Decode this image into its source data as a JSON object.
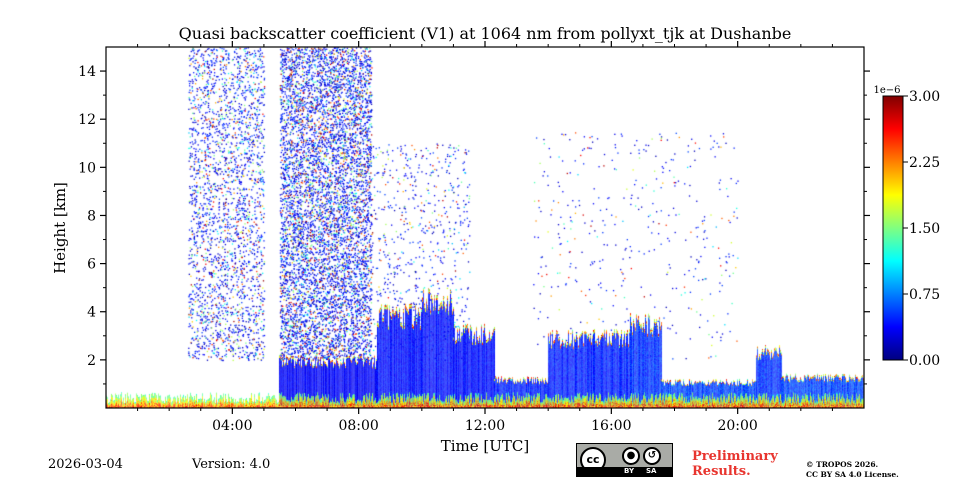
{
  "chart_data": {
    "type": "heatmap",
    "title": "Quasi backscatter coefficient (V1) at 1064 nm from pollyxt_tjk at Dushanbe",
    "xlabel": "Time [UTC]",
    "ylabel": "Height [km]",
    "x_unit": "hours UTC",
    "xlim": [
      0,
      24
    ],
    "ylim": [
      0,
      15
    ],
    "x_ticks": [
      4,
      8,
      12,
      16,
      20
    ],
    "x_tick_labels": [
      "04:00",
      "08:00",
      "12:00",
      "16:00",
      "20:00"
    ],
    "y_ticks": [
      2,
      4,
      6,
      8,
      10,
      12,
      14
    ],
    "y_tick_labels": [
      "2",
      "4",
      "6",
      "8",
      "10",
      "12",
      "14"
    ],
    "colorbar": {
      "range": [
        0,
        3.0
      ],
      "ticks": [
        0.0,
        0.75,
        1.5,
        2.25,
        3.0
      ],
      "tick_labels": [
        "0.00",
        "0.75",
        "1.50",
        "2.25",
        "3.00"
      ],
      "scale_label": "1e−6",
      "colormap": "jet"
    },
    "features": [
      {
        "desc": "dense noisy dots",
        "t_start": 5.5,
        "t_end": 8.4,
        "h_top": 15.0,
        "density": 0.55
      },
      {
        "desc": "sparse dots",
        "t_start": 2.6,
        "t_end": 5.0,
        "h_top": 15.0,
        "density": 0.25
      },
      {
        "desc": "sparse dots",
        "t_start": 8.4,
        "t_end": 11.5,
        "h_top": 11.0,
        "density": 0.07
      },
      {
        "desc": "sparse dots",
        "t_start": 13.5,
        "t_end": 20.0,
        "h_top": 11.5,
        "density": 0.02
      },
      {
        "desc": "aerosol layer",
        "t_start": 5.5,
        "t_end": 8.6,
        "h_bottom": 0.1,
        "h_top": 2.0,
        "value": 0.35
      },
      {
        "desc": "aerosol layer",
        "t_start": 8.6,
        "t_end": 10.0,
        "h_bottom": 0.1,
        "h_top": 4.0,
        "value": 0.4
      },
      {
        "desc": "aerosol layer",
        "t_start": 10.0,
        "t_end": 11.0,
        "h_bottom": 0.1,
        "h_top": 4.6,
        "value": 0.4
      },
      {
        "desc": "aerosol layer",
        "t_start": 11.0,
        "t_end": 12.3,
        "h_bottom": 0.1,
        "h_top": 3.2,
        "value": 0.4
      },
      {
        "desc": "aerosol layer",
        "t_start": 12.3,
        "t_end": 14.0,
        "h_bottom": 0.1,
        "h_top": 1.2,
        "value": 0.45
      },
      {
        "desc": "aerosol layer",
        "t_start": 14.0,
        "t_end": 16.6,
        "h_bottom": 0.1,
        "h_top": 3.0,
        "value": 0.45
      },
      {
        "desc": "aerosol layer",
        "t_start": 16.6,
        "t_end": 17.6,
        "h_bottom": 0.1,
        "h_top": 3.6,
        "value": 0.5
      },
      {
        "desc": "aerosol layer",
        "t_start": 17.6,
        "t_end": 20.6,
        "h_bottom": 0.1,
        "h_top": 1.1,
        "value": 0.55
      },
      {
        "desc": "aerosol layer",
        "t_start": 20.6,
        "t_end": 21.4,
        "h_bottom": 0.1,
        "h_top": 2.4,
        "value": 0.5
      },
      {
        "desc": "aerosol layer",
        "t_start": 21.4,
        "t_end": 24.0,
        "h_bottom": 0.1,
        "h_top": 1.3,
        "value": 0.55
      },
      {
        "desc": "near-surface high values",
        "t_start": 0.0,
        "t_end": 24.0,
        "h_bottom": 0.0,
        "h_top": 0.5,
        "value": 3.0
      }
    ]
  },
  "footer": {
    "date": "2026-03-04",
    "version": "Version: 4.0",
    "preliminary": [
      "Preliminary",
      "Results."
    ],
    "copyright": [
      "© TROPOS 2026.",
      "CC BY SA 4.0 License."
    ],
    "license_badge": {
      "cc": "cc",
      "by": "BY",
      "sa": "SA"
    }
  },
  "colors": {
    "accent_red": "#e8352f"
  }
}
